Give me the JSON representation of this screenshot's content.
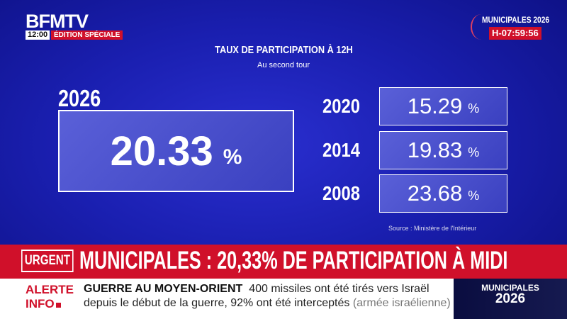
{
  "channel": {
    "logo": "BFMTV",
    "time": "12:00",
    "edition": "ÉDITION SPÉCIALE"
  },
  "event": {
    "title": "MUNICIPALES 2026",
    "countdown": "H-07:59:56"
  },
  "graphic": {
    "title": "TAUX DE PARTICIPATION À 12H",
    "subtitle": "Au second tour",
    "main": {
      "year": "2026",
      "value": "20.33",
      "unit": "%"
    },
    "history": [
      {
        "year": "2020",
        "value": "15.29",
        "unit": "%"
      },
      {
        "year": "2014",
        "value": "19.83",
        "unit": "%"
      },
      {
        "year": "2008",
        "value": "23.68",
        "unit": "%"
      }
    ],
    "source": "Source :  Ministère de l'Intérieur"
  },
  "urgent": {
    "label": "URGENT",
    "headline": "MUNICIPALES : 20,33% DE PARTICIPATION À MIDI"
  },
  "ticker": {
    "label_line1": "ALERTE",
    "label_line2": "INFO",
    "topic": "GUERRE AU MOYEN-ORIENT",
    "text1": "400 missiles ont été tirés vers Israël",
    "text2": "depuis le début de la guerre, 92% ont été interceptés",
    "source": "(armée israélienne)"
  },
  "badge": {
    "line1": "MUNICIPALES",
    "line2": "2026"
  }
}
